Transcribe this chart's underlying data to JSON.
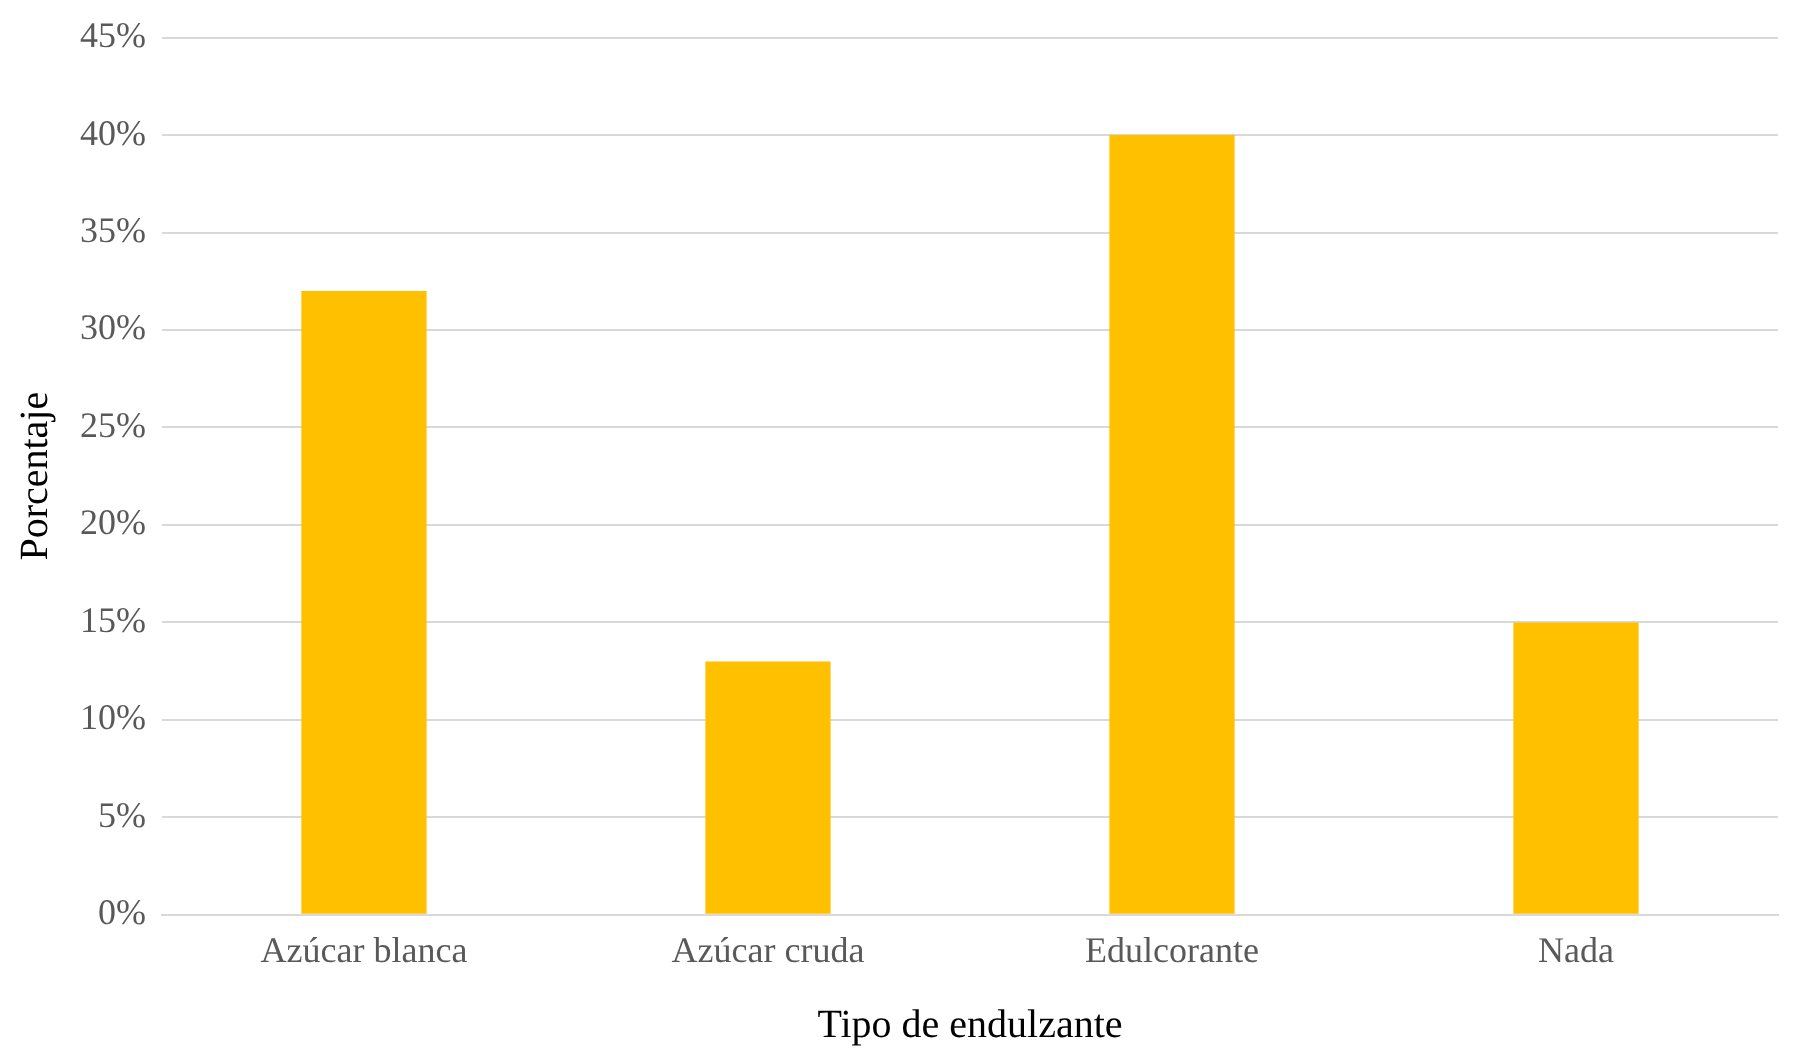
{
  "chart_data": {
    "type": "bar",
    "xlabel": "Tipo de endulzante",
    "ylabel": "Porcentaje",
    "categories": [
      "Azúcar blanca",
      "Azúcar cruda",
      "Edulcorante",
      "Nada"
    ],
    "values": [
      32,
      13,
      40,
      15
    ],
    "color": "#ffc000",
    "ylim": [
      0,
      45
    ],
    "yticks": [
      {
        "value": 0,
        "label": "0%"
      },
      {
        "value": 5,
        "label": "5%"
      },
      {
        "value": 10,
        "label": "10%"
      },
      {
        "value": 15,
        "label": "15%"
      },
      {
        "value": 20,
        "label": "20%"
      },
      {
        "value": 25,
        "label": "25%"
      },
      {
        "value": 30,
        "label": "30%"
      },
      {
        "value": 35,
        "label": "35%"
      },
      {
        "value": 40,
        "label": "40%"
      },
      {
        "value": 45,
        "label": "45%"
      }
    ],
    "grid": "y",
    "legend": false
  }
}
